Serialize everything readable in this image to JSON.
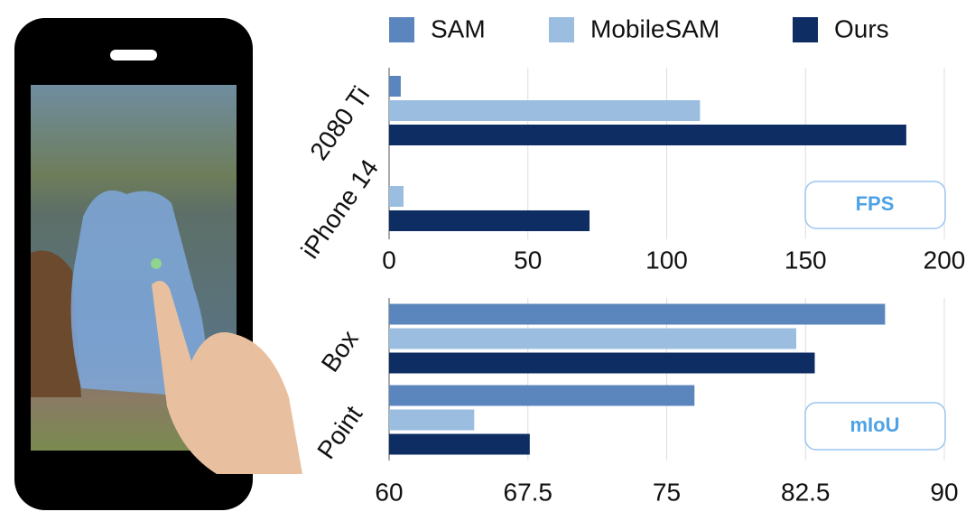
{
  "chart_data": [
    {
      "type": "hbar",
      "annotation": "FPS",
      "categories": [
        "2080 Ti",
        "iPhone 14"
      ],
      "series": [
        {
          "name": "SAM",
          "color": "#5b86bd",
          "values": [
            4.2,
            null
          ]
        },
        {
          "name": "MobileSAM",
          "color": "#9bbde0",
          "values": [
            112,
            5.2
          ]
        },
        {
          "name": "Ours",
          "color": "#0d2d63",
          "values": [
            186.3,
            72.2
          ]
        }
      ],
      "xlim": [
        0,
        200
      ],
      "xticks": [
        0,
        50,
        100,
        150,
        200
      ],
      "grid": true
    },
    {
      "type": "hbar",
      "annotation": "mIoU",
      "categories": [
        "Box",
        "Point"
      ],
      "series": [
        {
          "color": "#5b86bd",
          "values": [
            86.8,
            76.5
          ]
        },
        {
          "color": "#9bbde0",
          "values": [
            82.0,
            64.6
          ]
        },
        {
          "color": "#0d2d63",
          "values": [
            83.0,
            67.6
          ]
        }
      ],
      "xlim": [
        60,
        90
      ],
      "xticks": [
        60,
        67.5,
        75,
        82.5,
        90
      ],
      "grid": true
    }
  ]
}
